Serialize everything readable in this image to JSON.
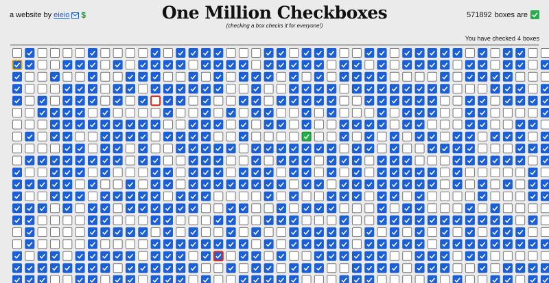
{
  "header": {
    "byline": "a website by",
    "author": "eieio",
    "donate": "$",
    "title": "One Million Checkboxes",
    "subtitle": "(checking a box checks it for everyone!)",
    "boxes_checked": {
      "count": 571892,
      "label": "boxes are"
    },
    "user_checked": {
      "prefix": "You have checked",
      "count": 4,
      "suffix": "boxes"
    }
  }
}
